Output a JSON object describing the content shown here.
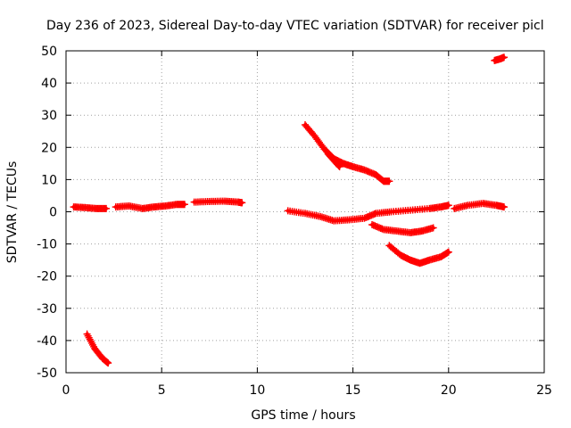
{
  "chart_data": {
    "type": "scatter",
    "title": "Day 236 of 2023, Sidereal Day-to-day VTEC variation (SDTVAR) for receiver picl",
    "xlabel": "GPS time / hours",
    "ylabel": "SDTVAR / TECUs",
    "xlim": [
      0,
      25
    ],
    "ylim": [
      -50,
      50
    ],
    "x_ticks": [
      0,
      5,
      10,
      15,
      20,
      25
    ],
    "y_ticks": [
      -50,
      -40,
      -30,
      -20,
      -10,
      0,
      10,
      20,
      30,
      40,
      50
    ],
    "grid": true,
    "marker": "+",
    "color": "#ff0000",
    "segments": [
      {
        "name": "trace-a",
        "points": [
          [
            0.4,
            1.5
          ],
          [
            1.0,
            1.3
          ],
          [
            1.6,
            1.0
          ],
          [
            2.1,
            1.0
          ]
        ]
      },
      {
        "name": "trace-b",
        "points": [
          [
            2.6,
            1.5
          ],
          [
            3.3,
            1.8
          ],
          [
            4.0,
            1.0
          ],
          [
            4.6,
            1.5
          ],
          [
            5.2,
            1.8
          ],
          [
            5.8,
            2.3
          ],
          [
            6.2,
            2.3
          ]
        ]
      },
      {
        "name": "trace-c",
        "points": [
          [
            6.7,
            3.0
          ],
          [
            7.5,
            3.2
          ],
          [
            8.3,
            3.3
          ],
          [
            9.0,
            3.0
          ],
          [
            9.2,
            2.8
          ]
        ]
      },
      {
        "name": "trace-d",
        "points": [
          [
            1.1,
            -38.0
          ],
          [
            1.5,
            -42.5
          ],
          [
            1.9,
            -45.5
          ],
          [
            2.2,
            -47.0
          ]
        ]
      },
      {
        "name": "trace-e",
        "points": [
          [
            11.6,
            0.3
          ],
          [
            12.5,
            -0.5
          ],
          [
            13.3,
            -1.5
          ],
          [
            14.0,
            -2.8
          ],
          [
            14.8,
            -2.5
          ],
          [
            15.6,
            -2.0
          ],
          [
            16.2,
            -0.5
          ],
          [
            17.0,
            0.0
          ],
          [
            18.0,
            0.5
          ],
          [
            19.0,
            1.0
          ],
          [
            19.6,
            1.5
          ],
          [
            20.0,
            2.0
          ]
        ]
      },
      {
        "name": "trace-f",
        "points": [
          [
            20.3,
            1.0
          ],
          [
            21.0,
            2.0
          ],
          [
            21.8,
            2.6
          ],
          [
            22.5,
            2.0
          ],
          [
            22.9,
            1.5
          ]
        ]
      },
      {
        "name": "trace-g",
        "points": [
          [
            12.5,
            27.0
          ],
          [
            13.0,
            23.5
          ],
          [
            13.5,
            19.5
          ],
          [
            14.0,
            16.5
          ],
          [
            14.5,
            15.0
          ],
          [
            15.0,
            14.0
          ],
          [
            15.6,
            13.0
          ],
          [
            16.2,
            11.5
          ],
          [
            16.6,
            9.5
          ],
          [
            16.9,
            9.5
          ]
        ]
      },
      {
        "name": "trace-h",
        "points": [
          [
            13.7,
            18.0
          ],
          [
            14.0,
            16.0
          ],
          [
            14.3,
            14.0
          ]
        ]
      },
      {
        "name": "trace-i",
        "points": [
          [
            16.0,
            -4.0
          ],
          [
            16.6,
            -5.5
          ],
          [
            17.3,
            -6.0
          ],
          [
            18.0,
            -6.5
          ],
          [
            18.6,
            -6.0
          ],
          [
            19.2,
            -5.0
          ]
        ]
      },
      {
        "name": "trace-j",
        "points": [
          [
            16.9,
            -10.5
          ],
          [
            17.5,
            -13.5
          ],
          [
            18.0,
            -15.0
          ],
          [
            18.5,
            -16.0
          ],
          [
            19.0,
            -15.0
          ],
          [
            19.6,
            -14.0
          ],
          [
            20.0,
            -12.5
          ]
        ]
      },
      {
        "name": "trace-k",
        "points": [
          [
            22.4,
            47.0
          ],
          [
            22.7,
            47.5
          ],
          [
            22.9,
            48.0
          ]
        ]
      }
    ]
  }
}
